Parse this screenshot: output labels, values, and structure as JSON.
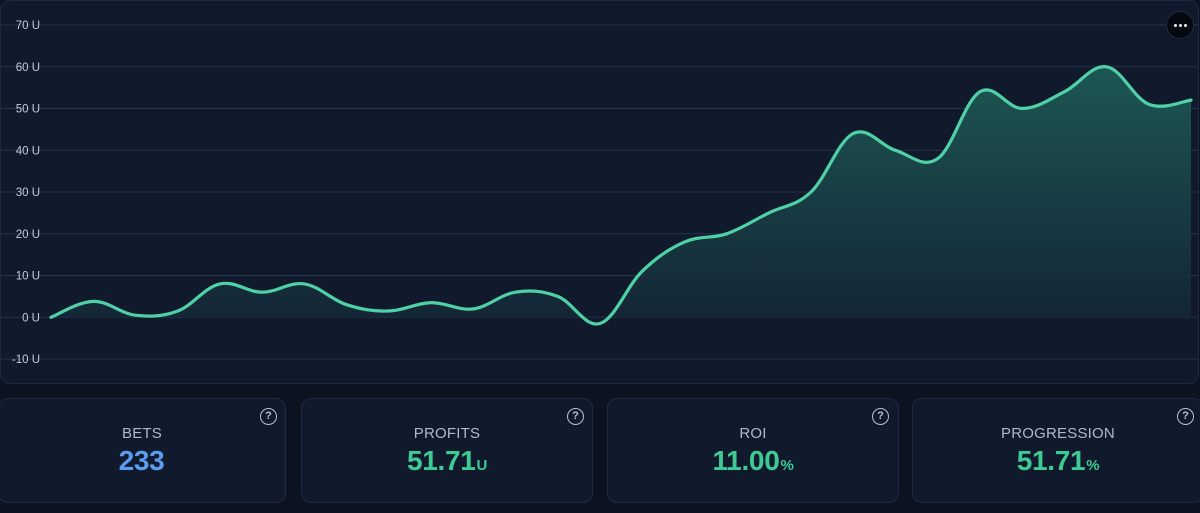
{
  "chart_data": {
    "type": "area",
    "y_unit_suffix": " U",
    "ylim": [
      -10,
      70
    ],
    "yticks": [
      -10,
      0,
      10,
      20,
      30,
      40,
      50,
      60,
      70
    ],
    "grid": true,
    "x": [
      0,
      1,
      2,
      3,
      4,
      5,
      6,
      7,
      8,
      9,
      10,
      11,
      12,
      13,
      14,
      15,
      16,
      17,
      18,
      19,
      20,
      21,
      22,
      23,
      24,
      25,
      26,
      27
    ],
    "values": [
      0,
      3.8,
      0.5,
      1.5,
      8,
      6,
      8,
      3,
      1.5,
      3.5,
      2,
      6,
      5,
      -1.5,
      11,
      18,
      20,
      25,
      30,
      44,
      40,
      38,
      54,
      50,
      54,
      60,
      51,
      52
    ],
    "colors": {
      "line": "#4fd1a5",
      "area_top": "#1d5a55",
      "area_bottom": "#142636",
      "grid": "#263348"
    }
  },
  "menu": {
    "icon": "more-horizontal-icon"
  },
  "stats": [
    {
      "label": "BETS",
      "value": "233",
      "unit": "",
      "color": "#5b9cf0"
    },
    {
      "label": "PROFITS",
      "value": "51.71",
      "unit": "U",
      "color": "#3ecb93"
    },
    {
      "label": "ROI",
      "value": "11.00",
      "unit": "%",
      "color": "#3ecb93"
    },
    {
      "label": "PROGRESSION",
      "value": "51.71",
      "unit": "%",
      "color": "#3ecb93"
    }
  ],
  "help_icon_glyph": "?"
}
